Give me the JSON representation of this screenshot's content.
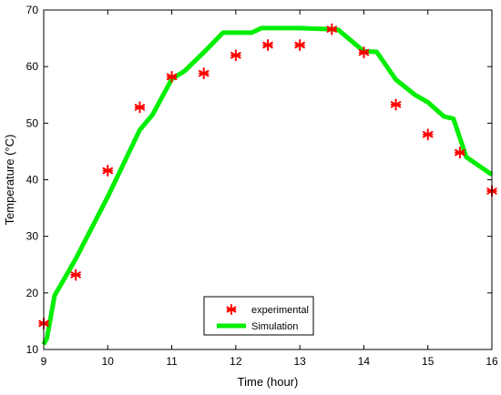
{
  "chart_data": {
    "type": "line",
    "xlabel": "Time (hour)",
    "ylabel": "Temperature (°C)",
    "xlim": [
      9,
      16
    ],
    "ylim": [
      10,
      70
    ],
    "x_ticks": [
      9,
      10,
      11,
      12,
      13,
      14,
      15,
      16
    ],
    "y_ticks": [
      10,
      20,
      30,
      40,
      50,
      60,
      70
    ],
    "grid": false,
    "legend_position": "bottom-center",
    "series": [
      {
        "name": "experimental",
        "style": "scatter",
        "marker": "asterisk",
        "color": "#ff0000",
        "x": [
          9.0,
          9.5,
          10.0,
          10.5,
          11.0,
          11.5,
          12.0,
          12.5,
          13.0,
          13.5,
          14.0,
          14.5,
          15.0,
          15.5,
          16.0
        ],
        "y": [
          14.6,
          23.2,
          41.6,
          52.8,
          58.2,
          58.8,
          62.0,
          63.8,
          63.8,
          66.6,
          62.5,
          53.3,
          48.0,
          44.8,
          38.0
        ]
      },
      {
        "name": "Simulation",
        "style": "line",
        "color": "#00ee00",
        "x": [
          9.0,
          9.05,
          9.17,
          9.5,
          10.0,
          10.5,
          10.7,
          11.0,
          11.2,
          11.5,
          11.8,
          12.0,
          12.25,
          12.4,
          13.0,
          13.5,
          13.6,
          14.0,
          14.2,
          14.5,
          14.8,
          15.0,
          15.15,
          15.25,
          15.4,
          15.6,
          16.0
        ],
        "y": [
          10.9,
          12.0,
          19.5,
          26.0,
          37.0,
          48.8,
          51.5,
          57.8,
          59.2,
          62.5,
          66.0,
          66.0,
          66.0,
          66.8,
          66.8,
          66.6,
          66.5,
          62.7,
          62.6,
          57.7,
          55.0,
          53.7,
          52.2,
          51.2,
          50.8,
          44.0,
          40.9
        ]
      }
    ]
  }
}
